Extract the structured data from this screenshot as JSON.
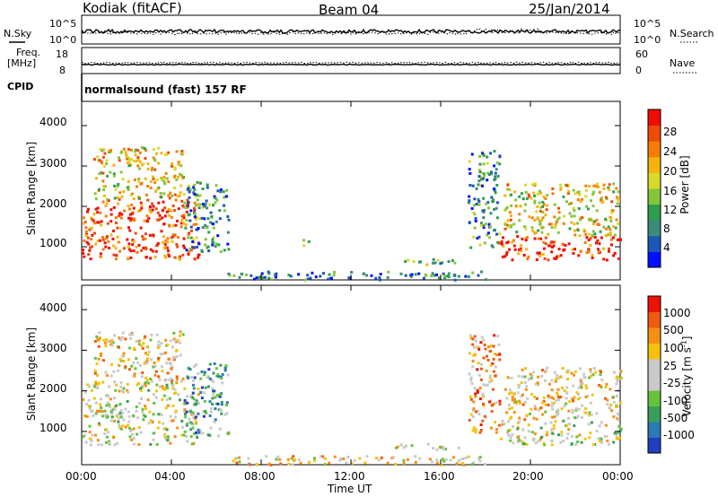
{
  "header": {
    "station": "Kodiak (fitACF)",
    "beam": "Beam 04",
    "date": "25/Jan/2014"
  },
  "top_panels": {
    "nsky_label": "N.Sky",
    "nsearch_label": "N.Search",
    "nsky_ticks": [
      "10^5",
      "10^0"
    ],
    "nsearch_ticks": [
      "10^5",
      "10^0"
    ],
    "freq_label_1": "Freq.",
    "freq_label_2": "[MHz]",
    "freq_ticks": [
      "18",
      "8"
    ],
    "nave_label": "Nave",
    "nave_ticks": [
      "60",
      "0"
    ],
    "cpid_label": "CPID",
    "cpid_value": "normalsound (fast) 157 RF"
  },
  "chart_data": [
    {
      "type": "heatmap",
      "name": "power",
      "ylabel": "Slant Range [km]",
      "yticks": [
        1000,
        2000,
        3000,
        4000
      ],
      "ylim": [
        180,
        4600
      ],
      "xlim": [
        0,
        24
      ],
      "colorbar_label": "Power [dB]",
      "colorbar_ticks": [
        "4",
        "8",
        "12",
        "16",
        "20",
        "24",
        "28"
      ],
      "colorbar_colors": [
        "#0010ff",
        "#1c56b8",
        "#3a8b7a",
        "#2e9e4d",
        "#84c63a",
        "#d7da2a",
        "#f5b30c",
        "#f57d05",
        "#f04a0a",
        "#ee0e06"
      ],
      "features": [
        {
          "t0": 0.0,
          "t1": 5.2,
          "r0": 700,
          "r1": 2200,
          "level": 0.85
        },
        {
          "t0": 0.5,
          "t1": 4.5,
          "r0": 2200,
          "r1": 3500,
          "level": 0.6
        },
        {
          "t0": 4.5,
          "t1": 6.5,
          "r0": 900,
          "r1": 2700,
          "level": 0.3
        },
        {
          "t0": 9.8,
          "t1": 10.3,
          "r0": 1050,
          "r1": 1200,
          "level": 0.5
        },
        {
          "t0": 13.5,
          "t1": 16.8,
          "r0": 580,
          "r1": 720,
          "level": 0.4
        },
        {
          "t0": 6.5,
          "t1": 18.0,
          "r0": 200,
          "r1": 420,
          "level": 0.2
        },
        {
          "t0": 17.2,
          "t1": 18.6,
          "r0": 1000,
          "r1": 3400,
          "level": 0.3
        },
        {
          "t0": 18.5,
          "t1": 24.0,
          "r0": 700,
          "r1": 1300,
          "level": 0.9
        },
        {
          "t0": 18.8,
          "t1": 24.0,
          "r0": 1300,
          "r1": 2600,
          "level": 0.6
        }
      ]
    },
    {
      "type": "heatmap",
      "name": "velocity",
      "ylabel": "Slant Range [km]",
      "yticks": [
        1000,
        2000,
        3000,
        4000
      ],
      "ylim": [
        180,
        4600
      ],
      "xlim": [
        0,
        24
      ],
      "colorbar_label": "Velocity [m s",
      "colorbar_label_sup": "-1",
      "colorbar_label_end": "]",
      "colorbar_ticks": [
        "1000",
        "500",
        "100",
        "25",
        "-25",
        "-100",
        "-500",
        "-1000"
      ],
      "colorbar_colors": [
        "#1f3fbf",
        "#2a7ab5",
        "#3a9e5a",
        "#66c23c",
        "#c9c9c9",
        "#c9c9c9",
        "#f5c20a",
        "#f59012",
        "#f05a10",
        "#ee1205"
      ],
      "features": [
        {
          "t0": 0.0,
          "t1": 5.2,
          "r0": 700,
          "r1": 2200,
          "level": 0.5
        },
        {
          "t0": 0.5,
          "t1": 4.5,
          "r0": 2200,
          "r1": 3500,
          "level": 0.6
        },
        {
          "t0": 4.5,
          "t1": 6.5,
          "r0": 900,
          "r1": 2700,
          "level": 0.3
        },
        {
          "t0": 13.5,
          "t1": 16.8,
          "r0": 580,
          "r1": 720,
          "level": 0.55
        },
        {
          "t0": 6.5,
          "t1": 18.0,
          "r0": 200,
          "r1": 420,
          "level": 0.6
        },
        {
          "t0": 17.2,
          "t1": 18.6,
          "r0": 1000,
          "r1": 3400,
          "level": 0.7
        },
        {
          "t0": 18.5,
          "t1": 24.0,
          "r0": 700,
          "r1": 1300,
          "level": 0.5
        },
        {
          "t0": 18.8,
          "t1": 24.0,
          "r0": 1300,
          "r1": 2600,
          "level": 0.6
        }
      ]
    }
  ],
  "time_axis": {
    "ticks": [
      "00:00",
      "04:00",
      "08:00",
      "12:00",
      "16:00",
      "20:00",
      "00:00"
    ],
    "label": "Time UT"
  }
}
